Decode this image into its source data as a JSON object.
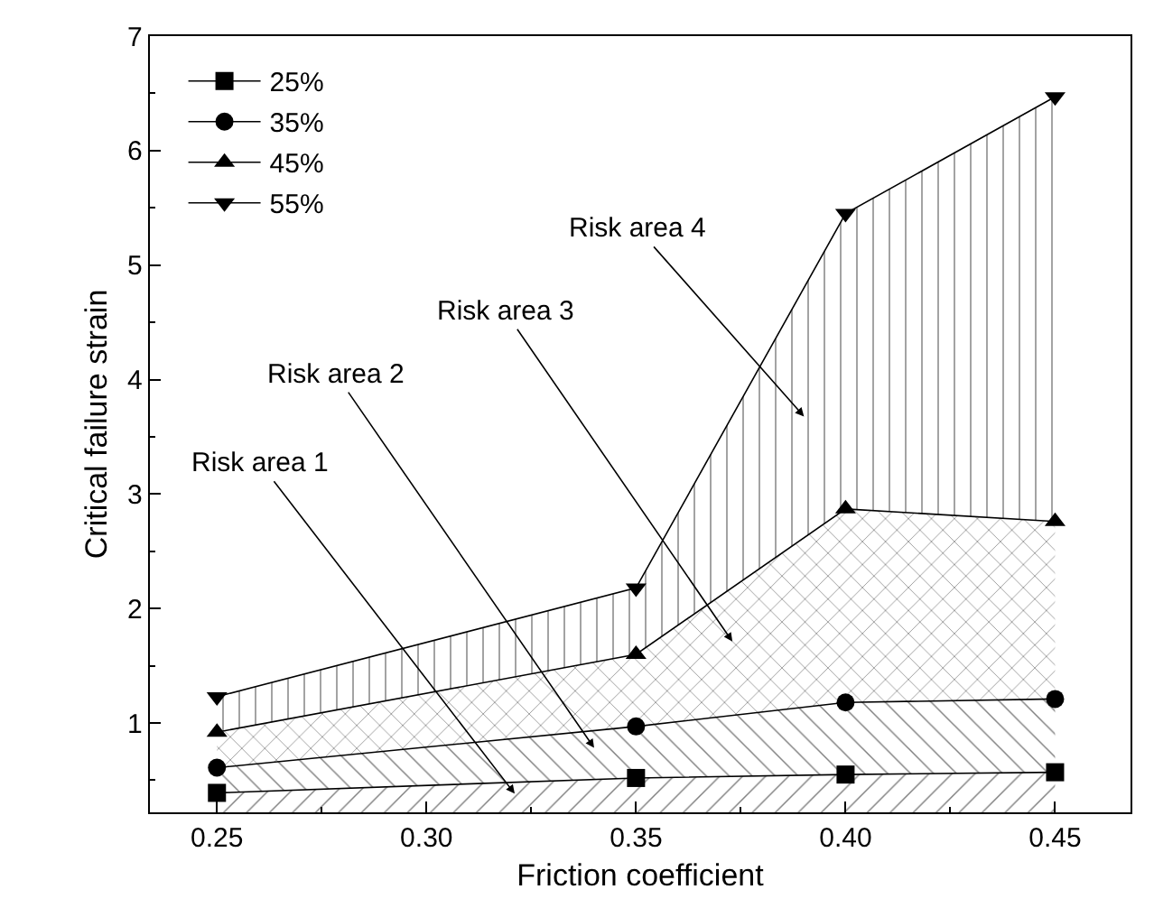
{
  "chart_data": {
    "type": "area",
    "xlabel": "Friction coefficient",
    "ylabel": "Critical failure strain",
    "x": [
      0.25,
      0.35,
      0.4,
      0.45
    ],
    "series": [
      {
        "name": "25%",
        "color": "#000000",
        "marker": "square",
        "values": [
          0.39,
          0.52,
          0.55,
          0.57
        ]
      },
      {
        "name": "35%",
        "color": "#000000",
        "marker": "circle",
        "values": [
          0.61,
          0.97,
          1.18,
          1.21
        ]
      },
      {
        "name": "45%",
        "color": "#000000",
        "marker": "triangle",
        "values": [
          0.92,
          1.6,
          2.87,
          2.76
        ]
      },
      {
        "name": "55%",
        "color": "#000000",
        "marker": "triangle-down",
        "values": [
          1.23,
          2.18,
          5.45,
          6.47
        ]
      }
    ],
    "xlim": [
      0.234,
      0.468
    ],
    "xticks": [
      {
        "value": 0.25,
        "label": "0.25"
      },
      {
        "value": 0.3,
        "label": "0.30"
      },
      {
        "value": 0.35,
        "label": "0.35"
      },
      {
        "value": 0.4,
        "label": "0.40"
      },
      {
        "value": 0.45,
        "label": "0.45"
      }
    ],
    "ylim": [
      0.22,
      7
    ],
    "yticks": [
      1,
      2,
      3,
      4,
      5,
      6,
      7
    ],
    "legend": "top left",
    "line_style": "solid",
    "annotations": [
      "Risk area 1",
      "Risk area 2",
      "Risk area 3",
      "Risk area 4"
    ]
  }
}
